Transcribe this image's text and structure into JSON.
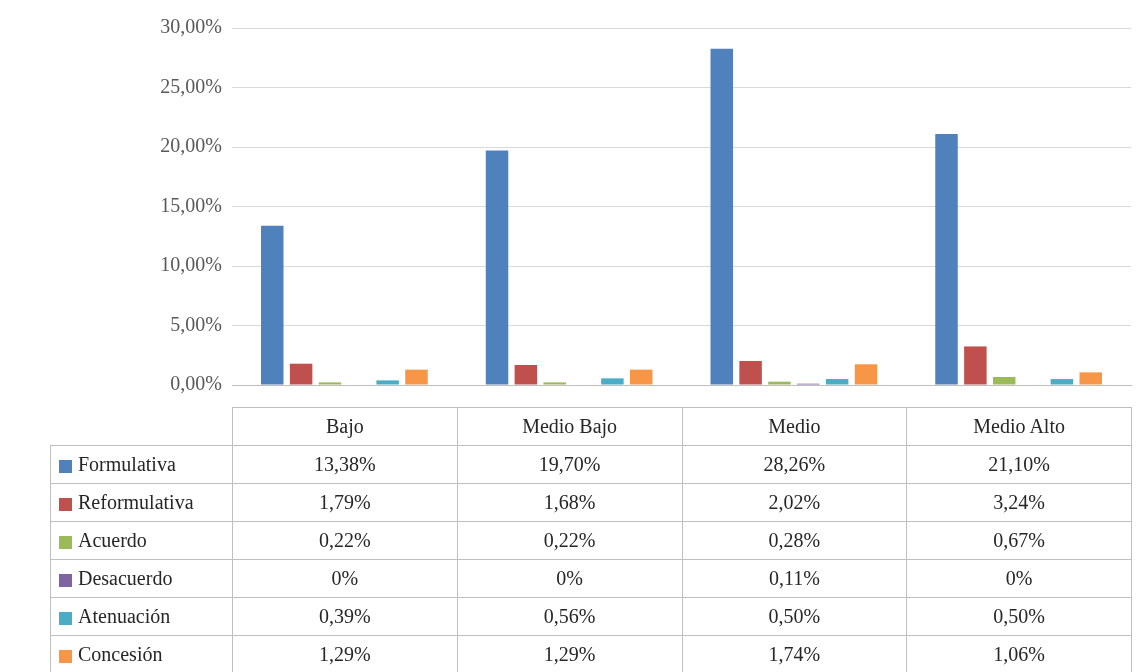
{
  "chart_data": {
    "type": "bar",
    "categories": [
      "Bajo",
      "Medio Bajo",
      "Medio",
      "Medio Alto"
    ],
    "series": [
      {
        "name": "Formulativa",
        "color": "#4f81bd",
        "values": [
          13.38,
          19.7,
          28.26,
          21.1
        ],
        "value_labels": [
          "13,38%",
          "19,70%",
          "28,26%",
          "21,10%"
        ]
      },
      {
        "name": "Reformulativa",
        "color": "#c0504d",
        "values": [
          1.79,
          1.68,
          2.02,
          3.24
        ],
        "value_labels": [
          "1,79%",
          "1,68%",
          "2,02%",
          "3,24%"
        ]
      },
      {
        "name": "Acuerdo",
        "color": "#9bbb59",
        "values": [
          0.22,
          0.22,
          0.28,
          0.67
        ],
        "value_labels": [
          "0,22%",
          "0,22%",
          "0,28%",
          "0,67%"
        ]
      },
      {
        "name": "Desacuerdo",
        "color": "#8064a2",
        "values": [
          0,
          0,
          0.11,
          0
        ],
        "value_labels": [
          "0%",
          "0%",
          "0,11%",
          "0%"
        ]
      },
      {
        "name": "Atenuación",
        "color": "#4bacc6",
        "values": [
          0.39,
          0.56,
          0.5,
          0.5
        ],
        "value_labels": [
          "0,39%",
          "0,56%",
          "0,50%",
          "0,50%"
        ]
      },
      {
        "name": "Concesión",
        "color": "#f79646",
        "values": [
          1.29,
          1.29,
          1.74,
          1.06
        ],
        "value_labels": [
          "1,29%",
          "1,29%",
          "1,74%",
          "1,06%"
        ]
      }
    ],
    "ylim": [
      0,
      30
    ],
    "yticks": [
      {
        "value": 0,
        "label": "0,00%"
      },
      {
        "value": 5,
        "label": "5,00%"
      },
      {
        "value": 10,
        "label": "10,00%"
      },
      {
        "value": 15,
        "label": "15,00%"
      },
      {
        "value": 20,
        "label": "20,00%"
      },
      {
        "value": 25,
        "label": "25,00%"
      },
      {
        "value": 30,
        "label": "30,00%"
      }
    ],
    "grid": "y",
    "legend": "bottom"
  }
}
